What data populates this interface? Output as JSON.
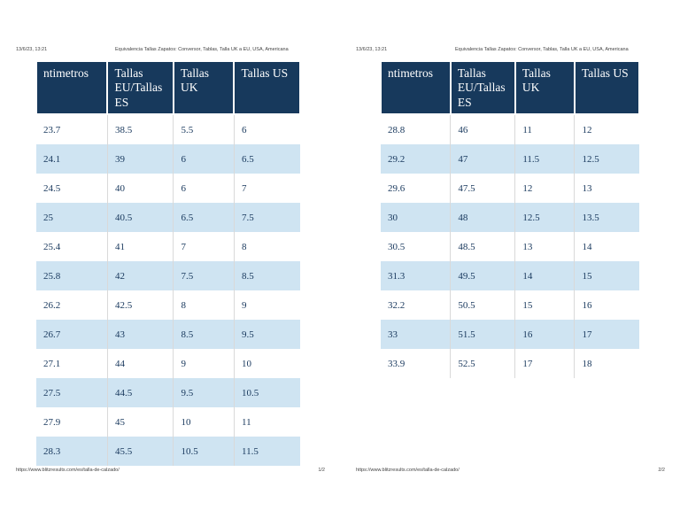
{
  "meta": {
    "date": "13/6/23, 13:21",
    "title": "Equivalencia Tallas Zapatos: Conversor, Tablas, Talla UK a EU, USA, Americana",
    "url": "https://www.blitzresults.com/es/talla-de-calzado/"
  },
  "table": {
    "columns": [
      "ntimetros",
      "Tallas EU/Tallas ES",
      "Tallas UK",
      "Tallas US"
    ]
  },
  "pages": [
    {
      "page_number": "1/2",
      "rows": [
        [
          "23.7",
          "38.5",
          "5.5",
          "6"
        ],
        [
          "24.1",
          "39",
          "6",
          "6.5"
        ],
        [
          "24.5",
          "40",
          "6",
          "7"
        ],
        [
          "25",
          "40.5",
          "6.5",
          "7.5"
        ],
        [
          "25.4",
          "41",
          "7",
          "8"
        ],
        [
          "25.8",
          "42",
          "7.5",
          "8.5"
        ],
        [
          "26.2",
          "42.5",
          "8",
          "9"
        ],
        [
          "26.7",
          "43",
          "8.5",
          "9.5"
        ],
        [
          "27.1",
          "44",
          "9",
          "10"
        ],
        [
          "27.5",
          "44.5",
          "9.5",
          "10.5"
        ],
        [
          "27.9",
          "45",
          "10",
          "11"
        ],
        [
          "28.3",
          "45.5",
          "10.5",
          "11.5"
        ]
      ]
    },
    {
      "page_number": "2/2",
      "rows": [
        [
          "28.8",
          "46",
          "11",
          "12"
        ],
        [
          "29.2",
          "47",
          "11.5",
          "12.5"
        ],
        [
          "29.6",
          "47.5",
          "12",
          "13"
        ],
        [
          "30",
          "48",
          "12.5",
          "13.5"
        ],
        [
          "30.5",
          "48.5",
          "13",
          "14"
        ],
        [
          "31.3",
          "49.5",
          "14",
          "15"
        ],
        [
          "32.2",
          "50.5",
          "15",
          "16"
        ],
        [
          "33",
          "51.5",
          "16",
          "17"
        ],
        [
          "33.9",
          "52.5",
          "17",
          "18"
        ]
      ]
    }
  ],
  "colors": {
    "header_bg": "#17395c",
    "header_text": "#ffffff",
    "alt_row_bg": "#cfe4f2",
    "data_text": "#17375c",
    "meta_text": "#424242",
    "divider": "#d9d9d9"
  }
}
